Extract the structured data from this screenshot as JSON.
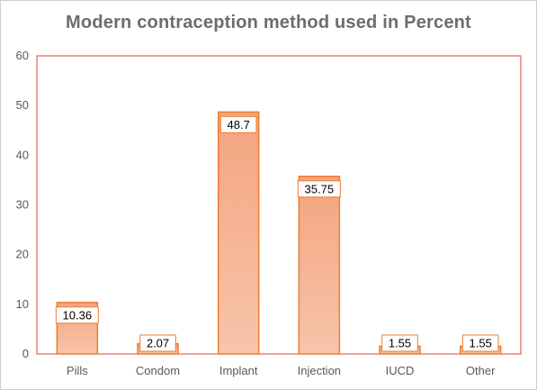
{
  "chart_data": {
    "type": "bar",
    "title": "Modern contraception  method used in Percent",
    "categories": [
      "Pills",
      "Condom",
      "Implant",
      "Injection",
      "IUCD",
      "Other"
    ],
    "values": [
      10.36,
      2.07,
      48.7,
      35.75,
      1.55,
      1.55
    ],
    "data_labels": [
      "10.36",
      "2.07",
      "48.7",
      "35.75",
      "1.55",
      "1.55"
    ],
    "ylim": [
      0,
      60
    ],
    "yticks": [
      0,
      10,
      20,
      30,
      40,
      50,
      60
    ],
    "xlabel": "",
    "ylabel": "",
    "grid": false,
    "legend": "none",
    "colors": {
      "bar_top": "#f4a47e",
      "bar_bottom": "#f7c4ab",
      "bar_edge": "#ed7d31",
      "plot_border": "#e0403a",
      "label_border": "#ed7d31"
    }
  }
}
